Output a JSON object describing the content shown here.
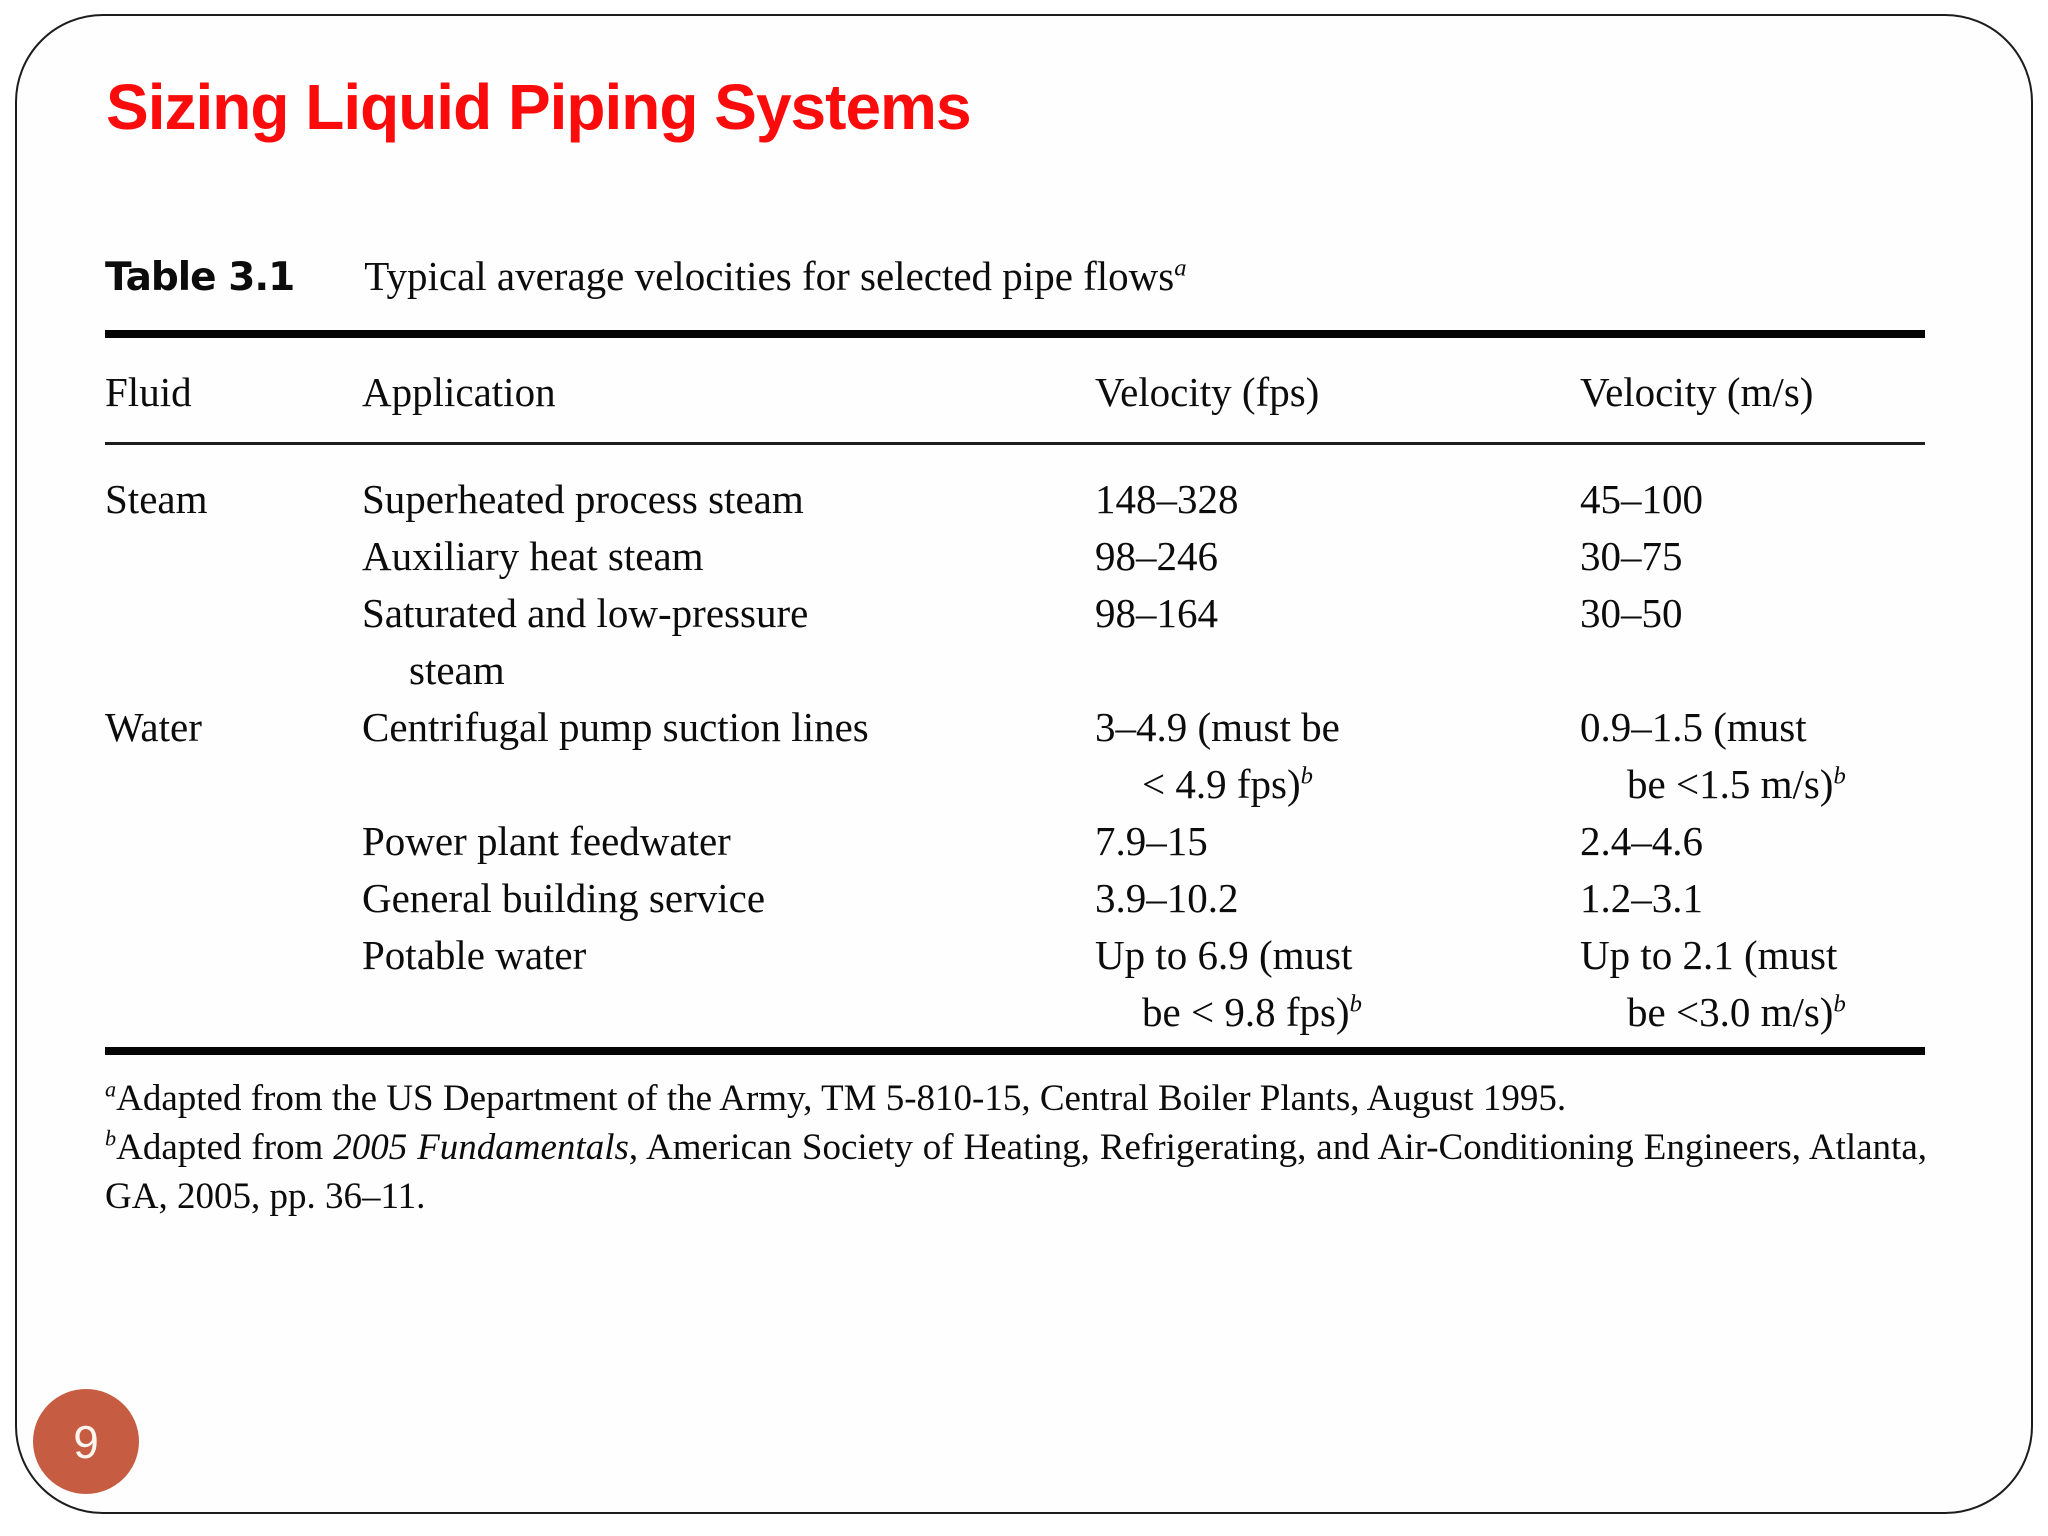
{
  "slide": {
    "title": "Sizing Liquid Piping Systems",
    "page_number": "9"
  },
  "colors": {
    "title_red": "#fb0b0b",
    "badge_orange": "#c65d43",
    "rule_black": "#050505"
  },
  "table": {
    "caption_label": "Table 3.1",
    "caption_text": "Typical average velocities for selected pipe flows^a",
    "columns": [
      "Fluid",
      "Application",
      "Velocity (fps)",
      "Velocity (m/s)"
    ],
    "rows": [
      {
        "fluid": "Steam",
        "application": [
          "Superheated process steam"
        ],
        "velocity_fps": [
          "148–328"
        ],
        "velocity_ms": [
          "45–100"
        ]
      },
      {
        "fluid": "",
        "application": [
          "Auxiliary heat steam"
        ],
        "velocity_fps": [
          "98–246"
        ],
        "velocity_ms": [
          "30–75"
        ]
      },
      {
        "fluid": "",
        "application": [
          "Saturated and low-pressure",
          "steam"
        ],
        "velocity_fps": [
          "98–164"
        ],
        "velocity_ms": [
          "30–50"
        ]
      },
      {
        "fluid": "Water",
        "application": [
          "Centrifugal pump suction lines"
        ],
        "velocity_fps": [
          "3–4.9 (must be",
          "< 4.9 fps)^b"
        ],
        "velocity_ms": [
          "0.9–1.5 (must",
          "be <1.5 m/s)^b"
        ]
      },
      {
        "fluid": "",
        "application": [
          "Power plant feedwater"
        ],
        "velocity_fps": [
          "7.9–15"
        ],
        "velocity_ms": [
          "2.4–4.6"
        ]
      },
      {
        "fluid": "",
        "application": [
          "General building service"
        ],
        "velocity_fps": [
          "3.9–10.2"
        ],
        "velocity_ms": [
          "1.2–3.1"
        ]
      },
      {
        "fluid": "",
        "application": [
          "Potable water"
        ],
        "velocity_fps": [
          "Up to 6.9 (must",
          "be < 9.8 fps)^b"
        ],
        "velocity_ms": [
          "Up to 2.1 (must",
          "be <3.0 m/s)^b"
        ]
      }
    ],
    "footnotes": [
      {
        "text": "^aAdapted from the US Department of the Army, TM 5-810-15, Central Boiler Plants, August 1995.",
        "justify": false
      },
      {
        "text": "^bAdapted from *2005 Fundamentals*, American Society of Heating, Refrigerating, and Air-Conditioning Engineers, Atlanta, GA, 2005, pp. 36–11.",
        "justify": true
      }
    ]
  }
}
